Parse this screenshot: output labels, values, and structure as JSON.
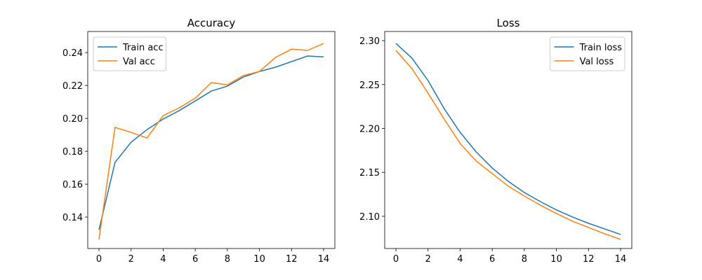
{
  "chart_data": [
    {
      "type": "line",
      "title": "Accuracy",
      "x": [
        0,
        1,
        2,
        3,
        4,
        5,
        6,
        7,
        8,
        9,
        10,
        11,
        12,
        13,
        14
      ],
      "series": [
        {
          "name": "Train acc",
          "color": "#1f77b4",
          "values": [
            0.1323,
            0.1732,
            0.1855,
            0.1932,
            0.1996,
            0.2047,
            0.2106,
            0.2166,
            0.2196,
            0.2251,
            0.2285,
            0.2311,
            0.2345,
            0.2379,
            0.2374
          ]
        },
        {
          "name": "Val acc",
          "color": "#ff7f0e",
          "values": [
            0.1264,
            0.1945,
            0.1915,
            0.1881,
            0.2017,
            0.2064,
            0.2123,
            0.2217,
            0.2204,
            0.226,
            0.2285,
            0.237,
            0.2421,
            0.2413,
            0.2455
          ]
        }
      ],
      "xlim": [
        -0.7,
        14.7
      ],
      "xticks": [
        0,
        2,
        4,
        6,
        8,
        10,
        12,
        14
      ],
      "ylim": [
        0.1209,
        0.2528
      ],
      "yticks": [
        0.14,
        0.16,
        0.18,
        {
          "value": 0.2,
          "label": "0.20"
        },
        0.22,
        0.24
      ],
      "grid": false,
      "legend": "upper-left"
    },
    {
      "type": "line",
      "title": "Loss",
      "x": [
        0,
        1,
        2,
        3,
        4,
        5,
        6,
        7,
        8,
        9,
        10,
        11,
        12,
        13,
        14
      ],
      "series": [
        {
          "name": "Train loss",
          "color": "#1f77b4",
          "values": [
            2.2968,
            2.2801,
            2.2546,
            2.2227,
            2.1956,
            2.1733,
            2.155,
            2.1398,
            2.1271,
            2.1167,
            2.1072,
            2.0992,
            2.092,
            2.0857,
            2.0793
          ]
        },
        {
          "name": "Val loss",
          "color": "#ff7f0e",
          "values": [
            2.2888,
            2.2681,
            2.2402,
            2.2108,
            2.1829,
            2.1629,
            2.1486,
            2.1343,
            2.1231,
            2.1127,
            2.1032,
            2.0944,
            2.0873,
            2.0801,
            2.0737
          ]
        }
      ],
      "xlim": [
        -0.7,
        14.7
      ],
      "xticks": [
        0,
        2,
        4,
        6,
        8,
        10,
        12,
        14
      ],
      "ylim": [
        2.0633,
        2.3104
      ],
      "yticks": [
        {
          "value": 2.1,
          "label": "2.10"
        },
        2.15,
        {
          "value": 2.2,
          "label": "2.20"
        },
        2.25,
        {
          "value": 2.3,
          "label": "2.30"
        }
      ],
      "grid": false,
      "legend": "upper-right"
    }
  ]
}
